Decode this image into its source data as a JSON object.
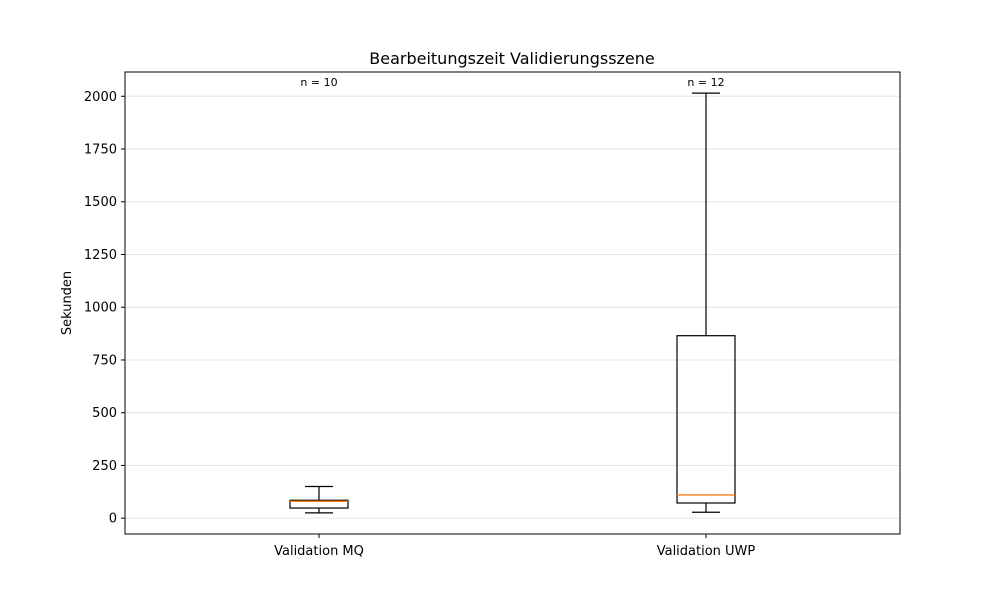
{
  "chart_data": {
    "type": "box",
    "title": "Bearbeitungszeit Validierungsszene",
    "xlabel": "",
    "ylabel": "Sekunden",
    "ylim": [
      -75,
      2115
    ],
    "yticks": [
      0,
      250,
      500,
      750,
      1000,
      1250,
      1500,
      1750,
      2000
    ],
    "grid": "horizontal",
    "categories": [
      "Validation MQ",
      "Validation UWP"
    ],
    "boxes": [
      {
        "name": "Validation MQ",
        "whisker_low": 25,
        "q1": 48,
        "median": 80,
        "q3": 85,
        "whisker_high": 150,
        "n_label": "n = 10"
      },
      {
        "name": "Validation UWP",
        "whisker_low": 28,
        "q1": 72,
        "median": 110,
        "q3": 865,
        "whisker_high": 2015,
        "n_label": "n = 12"
      }
    ],
    "colors": {
      "box": "#000000",
      "median": "#ff7f0e",
      "grid": "#e6e6e6"
    }
  }
}
